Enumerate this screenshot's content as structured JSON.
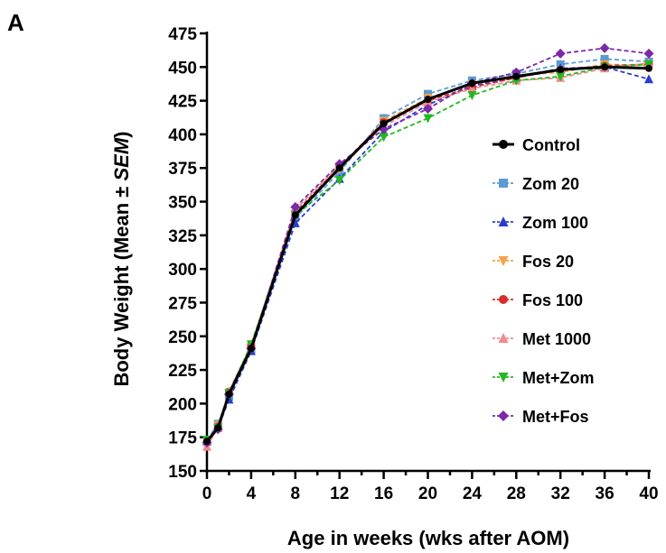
{
  "panel_label": "A",
  "chart_data": {
    "type": "line",
    "title": "",
    "xlabel": "Age in weeks (wks after AOM)",
    "ylabel_main": "Body Weight (Mean ± ",
    "ylabel_italic": "SEM",
    "ylabel_end": ")",
    "xlim": [
      0,
      40
    ],
    "ylim": [
      150,
      475
    ],
    "x_ticks": [
      0,
      4,
      8,
      12,
      16,
      20,
      24,
      28,
      32,
      36,
      40
    ],
    "y_ticks": [
      150,
      175,
      200,
      225,
      250,
      275,
      300,
      325,
      350,
      375,
      400,
      425,
      450,
      475
    ],
    "grid": false,
    "legend_position": "right-center",
    "x": [
      0,
      1,
      2,
      4,
      8,
      12,
      16,
      20,
      24,
      28,
      32,
      36,
      40
    ],
    "series": [
      {
        "name": "Control",
        "color": "#000000",
        "marker": "circle",
        "dash": "solid",
        "values": [
          172,
          182,
          207,
          241,
          340,
          375,
          408,
          426,
          438,
          443,
          448,
          450,
          449
        ]
      },
      {
        "name": "Zom 20",
        "color": "#5b9bd5",
        "marker": "square",
        "dash": "dashed",
        "values": [
          173,
          185,
          205,
          240,
          338,
          372,
          412,
          430,
          440,
          445,
          452,
          456,
          454
        ]
      },
      {
        "name": "Zom 100",
        "color": "#2a3ccf",
        "marker": "triangle-up",
        "dash": "dashed",
        "values": [
          172,
          182,
          203,
          239,
          334,
          367,
          402,
          422,
          436,
          442,
          449,
          450,
          441
        ]
      },
      {
        "name": "Fos 20",
        "color": "#f5a34a",
        "marker": "triangle-down",
        "dash": "dashed",
        "values": [
          171,
          184,
          208,
          242,
          341,
          374,
          410,
          427,
          437,
          444,
          446,
          452,
          451
        ]
      },
      {
        "name": "Fos 100",
        "color": "#d62e2e",
        "marker": "circle",
        "dash": "dashed",
        "values": [
          171,
          183,
          209,
          243,
          342,
          376,
          409,
          425,
          435,
          442,
          448,
          451,
          452
        ]
      },
      {
        "name": "Met 1000",
        "color": "#f28b8b",
        "marker": "triangle-up",
        "dash": "dashed",
        "values": [
          168,
          182,
          209,
          243,
          344,
          377,
          406,
          424,
          434,
          440,
          442,
          449,
          453
        ]
      },
      {
        "name": "Met+Zom",
        "color": "#22b81f",
        "marker": "triangle-down",
        "dash": "dashed",
        "values": [
          173,
          182,
          208,
          244,
          340,
          366,
          398,
          412,
          429,
          440,
          443,
          450,
          452
        ]
      },
      {
        "name": "Met+Fos",
        "color": "#7b2aa8",
        "marker": "diamond",
        "dash": "dashed",
        "values": [
          171,
          181,
          207,
          241,
          346,
          378,
          404,
          419,
          438,
          446,
          460,
          464,
          460
        ]
      }
    ]
  }
}
